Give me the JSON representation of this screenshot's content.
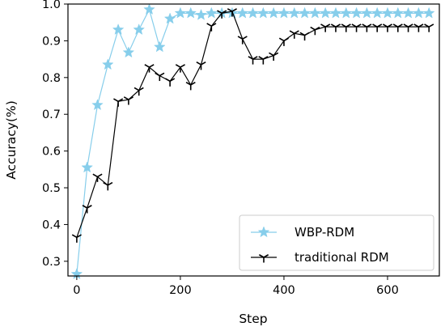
{
  "chart_data": {
    "type": "line",
    "title": "",
    "xlabel": "Step",
    "ylabel": "Accuracy(%)",
    "xlim": [
      -17,
      700
    ],
    "ylim": [
      0.26,
      1.0
    ],
    "xticks": [
      0,
      200,
      400,
      600
    ],
    "yticks": [
      0.3,
      0.4,
      0.5,
      0.6,
      0.7,
      0.8,
      0.9,
      1.0
    ],
    "xtick_labels": [
      "0",
      "200",
      "400",
      "600"
    ],
    "ytick_labels": [
      "0.3",
      "0.4",
      "0.5",
      "0.6",
      "0.7",
      "0.8",
      "0.9",
      "1.0"
    ],
    "grid": false,
    "legend_position": "lower-right",
    "x": [
      0,
      20,
      40,
      60,
      80,
      100,
      120,
      140,
      160,
      180,
      200,
      220,
      240,
      260,
      280,
      300,
      320,
      340,
      360,
      380,
      400,
      420,
      440,
      460,
      480,
      500,
      520,
      540,
      560,
      580,
      600,
      620,
      640,
      660,
      680
    ],
    "series": [
      {
        "name": "WBP-RDM",
        "color": "#87ceeb",
        "marker": "star",
        "values": [
          0.265,
          0.555,
          0.725,
          0.835,
          0.93,
          0.868,
          0.93,
          0.985,
          0.883,
          0.96,
          0.975,
          0.975,
          0.97,
          0.975,
          0.975,
          0.975,
          0.975,
          0.975,
          0.975,
          0.975,
          0.975,
          0.975,
          0.975,
          0.975,
          0.975,
          0.975,
          0.975,
          0.975,
          0.975,
          0.975,
          0.975,
          0.975,
          0.975,
          0.975,
          0.975
        ]
      },
      {
        "name": "traditional RDM",
        "color": "#000000",
        "marker": "tri_down",
        "values": [
          0.365,
          0.445,
          0.53,
          0.507,
          0.735,
          0.74,
          0.765,
          0.828,
          0.805,
          0.79,
          0.828,
          0.78,
          0.835,
          0.94,
          0.975,
          0.98,
          0.905,
          0.85,
          0.85,
          0.86,
          0.9,
          0.92,
          0.915,
          0.93,
          0.938,
          0.938,
          0.938,
          0.938,
          0.938,
          0.938,
          0.938,
          0.938,
          0.938,
          0.938,
          0.938
        ]
      }
    ]
  }
}
